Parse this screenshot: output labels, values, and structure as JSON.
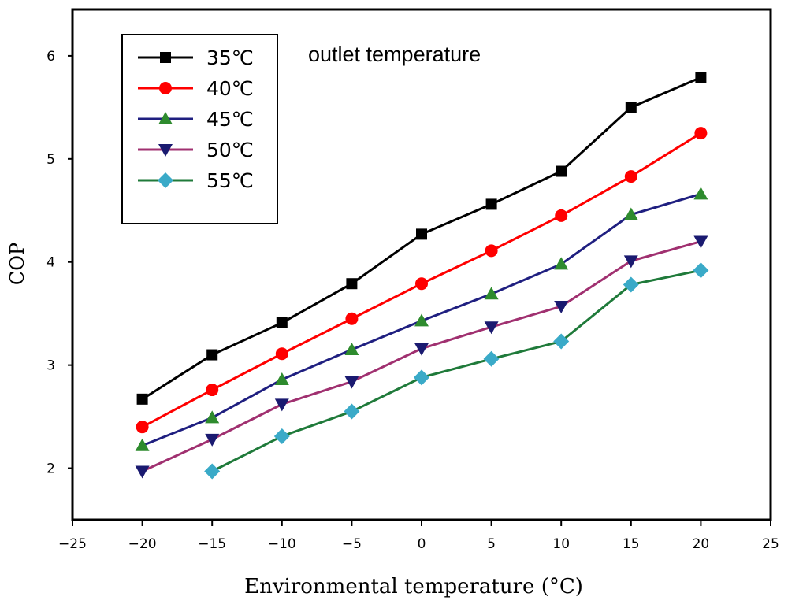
{
  "chart_data": {
    "type": "line",
    "title": "",
    "annotation": "outlet temperature",
    "xlabel": "Environmental temperature (°C)",
    "ylabel": "COP",
    "xlim": [
      -25,
      25
    ],
    "ylim": [
      1.5,
      6.45
    ],
    "x_ticks": [
      -25,
      -20,
      -15,
      -10,
      -5,
      0,
      5,
      10,
      15,
      20,
      25
    ],
    "x_tick_labels": [
      "−25",
      "−20",
      "−15",
      "−10",
      "−5",
      "0",
      "5",
      "10",
      "15",
      "20",
      "25"
    ],
    "y_ticks": [
      2,
      3,
      4,
      5,
      6
    ],
    "y_tick_labels": [
      "2",
      "3",
      "4",
      "5",
      "6"
    ],
    "grid": false,
    "legend_position": "top-left",
    "series": [
      {
        "name": "35℃",
        "color": "#000000",
        "marker": "square",
        "x": [
          -20,
          -15,
          -10,
          -5,
          0,
          5,
          10,
          15,
          20
        ],
        "values": [
          2.67,
          3.1,
          3.41,
          3.79,
          4.27,
          4.56,
          4.88,
          5.5,
          5.79
        ]
      },
      {
        "name": "40℃",
        "color": "#ff0000",
        "marker": "circle",
        "x": [
          -20,
          -15,
          -10,
          -5,
          0,
          5,
          10,
          15,
          20
        ],
        "values": [
          2.4,
          2.76,
          3.11,
          3.45,
          3.79,
          4.11,
          4.45,
          4.83,
          5.25
        ]
      },
      {
        "name": "45℃",
        "color": "#1f1f80",
        "marker": "triangle-up",
        "marker_color": "#2e8b2e",
        "x": [
          -20,
          -15,
          -10,
          -5,
          0,
          5,
          10,
          15,
          20
        ],
        "values": [
          2.22,
          2.49,
          2.86,
          3.15,
          3.43,
          3.69,
          3.98,
          4.46,
          4.66
        ]
      },
      {
        "name": "50℃",
        "color": "#a03070",
        "marker": "triangle-down",
        "marker_color": "#1a1a70",
        "x": [
          -20,
          -15,
          -10,
          -5,
          0,
          5,
          10,
          15,
          20
        ],
        "values": [
          1.97,
          2.28,
          2.62,
          2.84,
          3.16,
          3.37,
          3.57,
          4.01,
          4.2
        ]
      },
      {
        "name": "55℃",
        "color": "#1f7a3a",
        "marker": "diamond",
        "marker_color": "#3aaac8",
        "x": [
          -15,
          -10,
          -5,
          0,
          5,
          10,
          15,
          20
        ],
        "values": [
          1.97,
          2.31,
          2.55,
          2.88,
          3.06,
          3.23,
          3.78,
          3.92
        ]
      }
    ]
  }
}
